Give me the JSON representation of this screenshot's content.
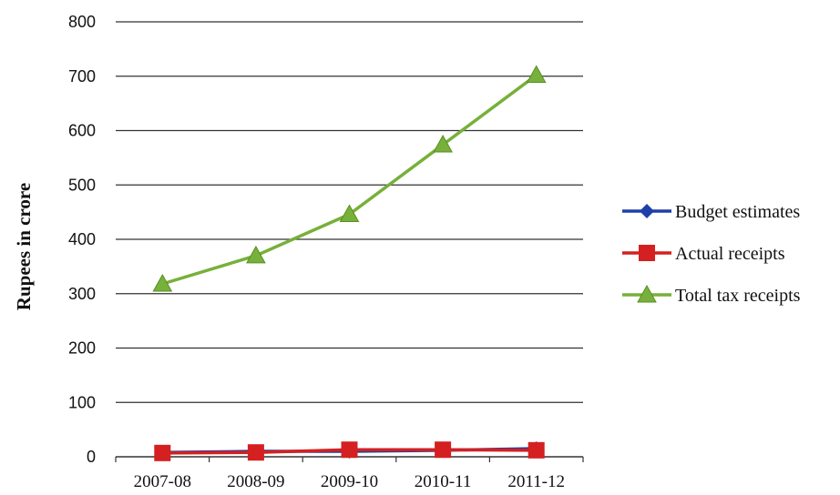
{
  "chart_data": {
    "type": "line",
    "title": "",
    "xlabel": "",
    "ylabel": "Rupees in crore",
    "categories": [
      "2007-08",
      "2008-09",
      "2009-10",
      "2010-11",
      "2011-12"
    ],
    "ylim": [
      0,
      800
    ],
    "yticks": [
      0,
      100,
      200,
      300,
      400,
      500,
      600,
      700,
      800
    ],
    "grid": true,
    "legend_position": "right",
    "series": [
      {
        "name": "Budget estimates",
        "values": [
          8,
          10,
          10,
          12,
          15
        ],
        "color": "#1f3fa8",
        "marker": "diamond"
      },
      {
        "name": "Actual receipts",
        "values": [
          7,
          8,
          13,
          13,
          12
        ],
        "color": "#d42020",
        "marker": "square"
      },
      {
        "name": "Total tax receipts",
        "values": [
          318,
          370,
          446,
          574,
          702
        ],
        "color": "#77b03a",
        "marker": "triangle"
      }
    ]
  }
}
